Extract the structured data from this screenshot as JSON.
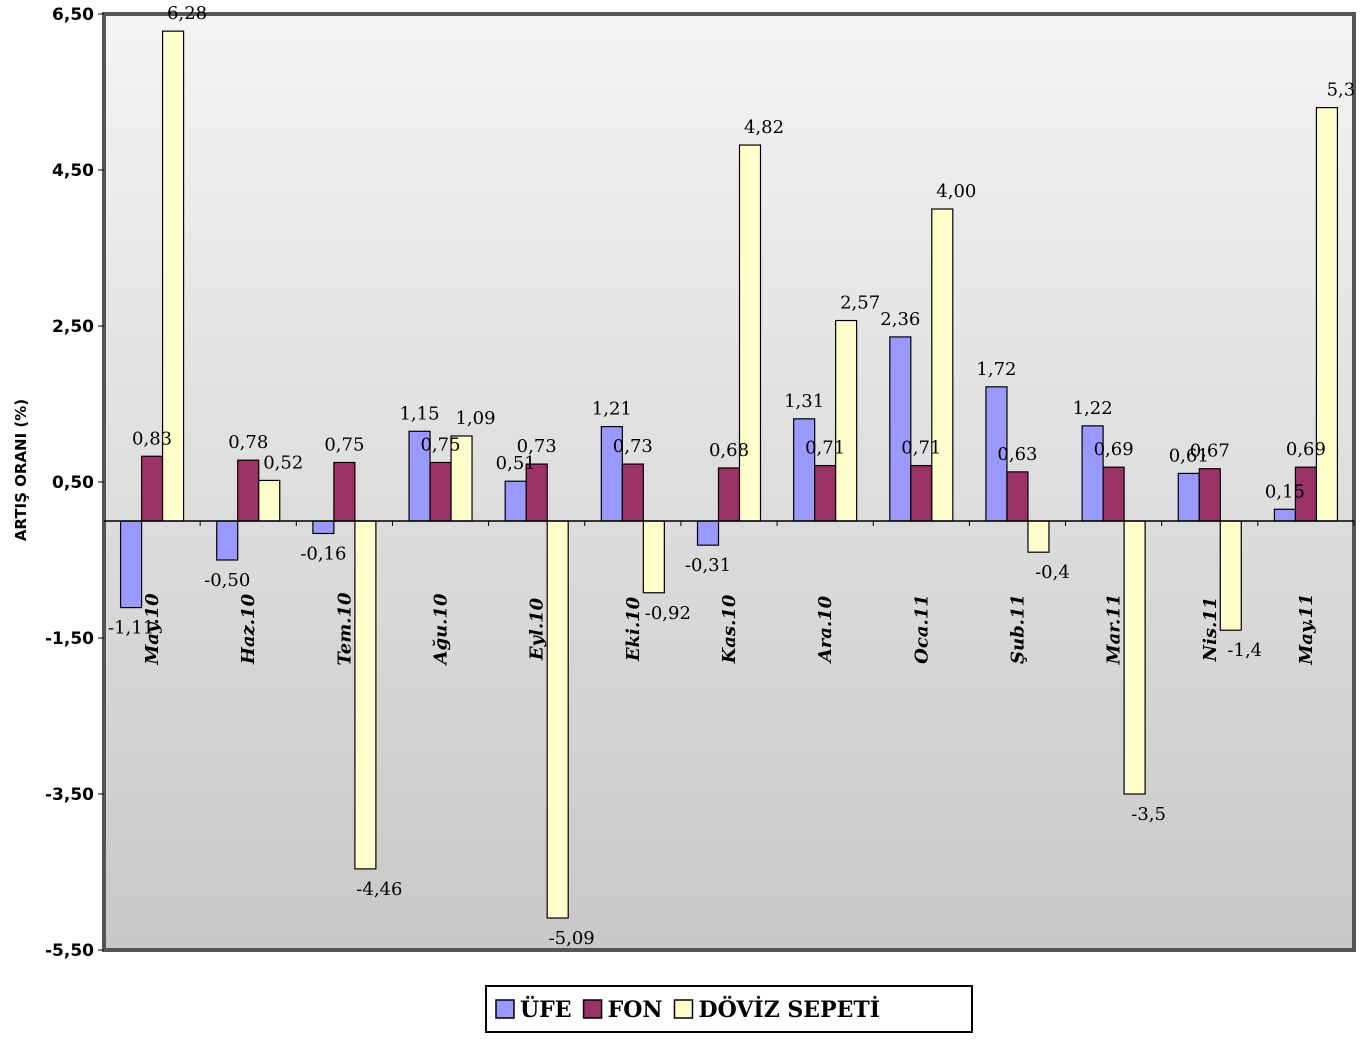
{
  "chart_data": {
    "type": "bar",
    "title": "",
    "xlabel": "",
    "ylabel": "ARTIŞ ORANI (%)",
    "ylim": [
      -5.5,
      6.5
    ],
    "yticks": [
      "6,50",
      "4,50",
      "2,50",
      "0,50",
      "-1,50",
      "-3,50",
      "-5,50"
    ],
    "ytick_values": [
      6.5,
      4.5,
      2.5,
      0.5,
      -1.5,
      -3.5,
      -5.5
    ],
    "categories": [
      "May.10",
      "Haz.10",
      "Tem.10",
      "Ağu.10",
      "Eyl.10",
      "Eki.10",
      "Kas.10",
      "Ara.10",
      "Oca.11",
      "Şub.11",
      "Mar.11",
      "Nis.11",
      "May.11"
    ],
    "series": [
      {
        "name": "ÜFE",
        "color": "#9999ff",
        "values": [
          -1.11,
          -0.5,
          -0.16,
          1.15,
          0.51,
          1.21,
          -0.31,
          1.31,
          2.36,
          1.72,
          1.22,
          0.61,
          0.15
        ],
        "labels": [
          "-1,11",
          "-0,50",
          "-0,16",
          "1,15",
          "0,51",
          "1,21",
          "-0,31",
          "1,31",
          "2,36",
          "1,72",
          "1,22",
          "0,61",
          "0,15"
        ]
      },
      {
        "name": "FON",
        "color": "#993366",
        "values": [
          0.83,
          0.78,
          0.75,
          0.75,
          0.73,
          0.73,
          0.68,
          0.71,
          0.71,
          0.63,
          0.69,
          0.67,
          0.69
        ],
        "labels": [
          "0,83",
          "0,78",
          "0,75",
          "0,75",
          "0,73",
          "0,73",
          "0,68",
          "0,71",
          "0,71",
          "0,63",
          "0,69",
          "0,67",
          "0,69"
        ]
      },
      {
        "name": "DÖVİZ SEPETİ",
        "color": "#ffffcc",
        "values": [
          6.28,
          0.52,
          -4.46,
          1.09,
          -5.09,
          -0.92,
          4.82,
          2.57,
          4.0,
          -0.4,
          -3.5,
          -1.4,
          5.3
        ],
        "labels": [
          "6,28",
          "0,52",
          "-4,46",
          "1,09",
          "-5,09",
          "-0,92",
          "4,82",
          "2,57",
          "4,00",
          "-0,4",
          "-3,5",
          "-1,4",
          "5,3"
        ]
      }
    ],
    "legend_position": "bottom-center",
    "grid": false
  }
}
